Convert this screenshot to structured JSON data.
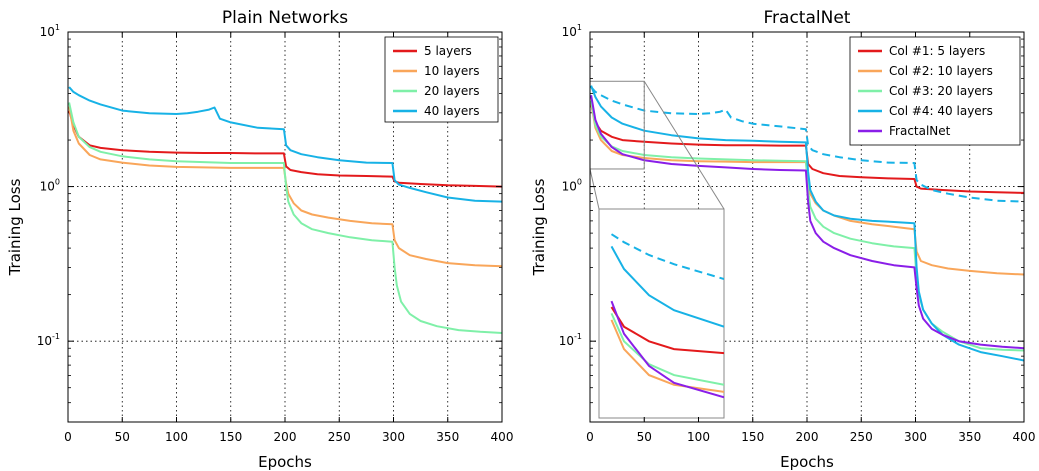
{
  "chart_data": [
    {
      "type": "line",
      "title": "Plain Networks",
      "xlabel": "Epochs",
      "ylabel": "Training Loss",
      "xlim": [
        0,
        400
      ],
      "ylim": [
        0.03,
        10
      ],
      "yscale": "log",
      "grid": true,
      "legend_position": "top-right",
      "x_ticks": [
        "0",
        "50",
        "100",
        "150",
        "200",
        "250",
        "300",
        "350",
        "400"
      ],
      "y_ticks": [
        {
          "base": "10",
          "exp": "-1"
        },
        {
          "base": "10",
          "exp": "0"
        },
        {
          "base": "10",
          "exp": "1"
        }
      ],
      "series": [
        {
          "name": "5 layers",
          "color": "#e31a1c",
          "x": [
            1,
            5,
            10,
            20,
            30,
            50,
            75,
            100,
            125,
            150,
            175,
            199,
            201,
            205,
            215,
            230,
            250,
            275,
            299,
            301,
            305,
            325,
            350,
            375,
            400
          ],
          "y": [
            3.1,
            2.5,
            2.1,
            1.85,
            1.78,
            1.72,
            1.68,
            1.66,
            1.65,
            1.65,
            1.64,
            1.64,
            1.35,
            1.28,
            1.24,
            1.2,
            1.18,
            1.17,
            1.16,
            1.08,
            1.06,
            1.04,
            1.02,
            1.01,
            1.0
          ]
        },
        {
          "name": "10 layers",
          "color": "#f9a65a",
          "x": [
            1,
            5,
            10,
            20,
            30,
            50,
            75,
            100,
            125,
            150,
            175,
            199,
            201,
            203,
            208,
            215,
            225,
            240,
            260,
            280,
            299,
            301,
            305,
            315,
            330,
            350,
            375,
            400
          ],
          "y": [
            3.3,
            2.3,
            1.9,
            1.6,
            1.5,
            1.43,
            1.37,
            1.34,
            1.33,
            1.32,
            1.32,
            1.32,
            1.05,
            0.9,
            0.78,
            0.7,
            0.66,
            0.63,
            0.6,
            0.58,
            0.57,
            0.45,
            0.4,
            0.36,
            0.34,
            0.32,
            0.31,
            0.305
          ]
        },
        {
          "name": "20 layers",
          "color": "#7ff0a8",
          "x": [
            1,
            5,
            10,
            20,
            30,
            50,
            75,
            100,
            125,
            150,
            175,
            199,
            201,
            203,
            208,
            215,
            225,
            240,
            260,
            280,
            299,
            301,
            303,
            307,
            315,
            325,
            340,
            360,
            380,
            400
          ],
          "y": [
            3.5,
            2.6,
            2.1,
            1.8,
            1.68,
            1.57,
            1.5,
            1.46,
            1.44,
            1.42,
            1.42,
            1.42,
            1.0,
            0.8,
            0.66,
            0.58,
            0.53,
            0.5,
            0.47,
            0.45,
            0.44,
            0.3,
            0.23,
            0.18,
            0.15,
            0.135,
            0.125,
            0.118,
            0.115,
            0.113
          ]
        },
        {
          "name": "40 layers",
          "color": "#17b2e6",
          "x": [
            1,
            5,
            10,
            20,
            30,
            50,
            75,
            100,
            110,
            120,
            130,
            135,
            140,
            150,
            175,
            199,
            201,
            205,
            215,
            230,
            250,
            275,
            299,
            301,
            305,
            315,
            330,
            350,
            375,
            400
          ],
          "y": [
            4.4,
            4.1,
            3.9,
            3.6,
            3.4,
            3.1,
            2.98,
            2.95,
            2.98,
            3.05,
            3.15,
            3.25,
            2.75,
            2.6,
            2.4,
            2.35,
            1.85,
            1.72,
            1.62,
            1.55,
            1.48,
            1.43,
            1.42,
            1.1,
            1.03,
            0.98,
            0.92,
            0.85,
            0.81,
            0.8
          ]
        }
      ]
    },
    {
      "type": "line",
      "title": "FractalNet",
      "xlabel": "Epochs",
      "ylabel": "Training Loss",
      "xlim": [
        0,
        400
      ],
      "ylim": [
        0.03,
        10
      ],
      "yscale": "log",
      "grid": true,
      "legend_position": "top-right",
      "inset": "magnified view of epochs 0-50",
      "x_ticks": [
        "0",
        "50",
        "100",
        "150",
        "200",
        "250",
        "300",
        "350",
        "400"
      ],
      "y_ticks": [
        {
          "base": "10",
          "exp": "-1"
        },
        {
          "base": "10",
          "exp": "0"
        },
        {
          "base": "10",
          "exp": "1"
        }
      ],
      "series": [
        {
          "name": "Col #1: 5 layers",
          "color": "#e31a1c",
          "x": [
            1,
            5,
            10,
            20,
            30,
            50,
            75,
            100,
            125,
            150,
            175,
            199,
            201,
            205,
            215,
            230,
            250,
            275,
            299,
            301,
            305,
            325,
            350,
            375,
            400
          ],
          "y": [
            3.4,
            2.6,
            2.3,
            2.1,
            2.0,
            1.95,
            1.9,
            1.87,
            1.85,
            1.85,
            1.84,
            1.84,
            1.4,
            1.3,
            1.22,
            1.17,
            1.15,
            1.13,
            1.12,
            1.0,
            0.97,
            0.95,
            0.93,
            0.92,
            0.91
          ]
        },
        {
          "name": "Col #2: 10 layers",
          "color": "#f9a65a",
          "x": [
            1,
            5,
            10,
            20,
            30,
            50,
            75,
            100,
            125,
            150,
            175,
            199,
            201,
            203,
            208,
            215,
            225,
            240,
            260,
            280,
            299,
            301,
            305,
            315,
            330,
            350,
            375,
            400
          ],
          "y": [
            3.5,
            2.4,
            2.0,
            1.7,
            1.6,
            1.53,
            1.48,
            1.46,
            1.45,
            1.44,
            1.44,
            1.44,
            1.1,
            0.9,
            0.78,
            0.7,
            0.65,
            0.6,
            0.57,
            0.55,
            0.53,
            0.38,
            0.33,
            0.31,
            0.295,
            0.285,
            0.275,
            0.27
          ]
        },
        {
          "name": "Col #3: 20 layers",
          "color": "#7ff0a8",
          "x": [
            1,
            5,
            10,
            20,
            30,
            50,
            75,
            100,
            125,
            150,
            175,
            199,
            201,
            203,
            208,
            215,
            225,
            240,
            260,
            280,
            299,
            301,
            303,
            307,
            315,
            325,
            340,
            360,
            380,
            400
          ],
          "y": [
            3.6,
            2.5,
            2.1,
            1.82,
            1.7,
            1.6,
            1.55,
            1.52,
            1.5,
            1.48,
            1.47,
            1.46,
            0.95,
            0.74,
            0.62,
            0.55,
            0.5,
            0.46,
            0.43,
            0.41,
            0.4,
            0.26,
            0.2,
            0.16,
            0.13,
            0.115,
            0.1,
            0.09,
            0.088,
            0.087
          ]
        },
        {
          "name": "Col #4: 40 layers",
          "color": "#17b2e6",
          "x": [
            1,
            5,
            10,
            20,
            30,
            50,
            75,
            100,
            125,
            150,
            175,
            199,
            201,
            203,
            208,
            215,
            225,
            240,
            260,
            280,
            299,
            301,
            303,
            307,
            315,
            325,
            340,
            360,
            380,
            400
          ],
          "y": [
            4.5,
            3.8,
            3.3,
            2.8,
            2.55,
            2.3,
            2.15,
            2.05,
            2.0,
            1.98,
            1.95,
            1.93,
            1.25,
            0.95,
            0.8,
            0.7,
            0.65,
            0.62,
            0.6,
            0.59,
            0.58,
            0.3,
            0.21,
            0.16,
            0.13,
            0.11,
            0.095,
            0.085,
            0.08,
            0.075
          ]
        },
        {
          "name": "",
          "color": "#17b2e6",
          "dashed": true,
          "x": [
            1,
            5,
            10,
            20,
            30,
            50,
            75,
            100,
            110,
            120,
            125,
            130,
            140,
            150,
            175,
            199,
            201,
            205,
            215,
            230,
            250,
            275,
            299,
            301,
            305,
            315,
            330,
            350,
            375,
            400
          ],
          "y": [
            4.4,
            4.1,
            3.9,
            3.6,
            3.4,
            3.1,
            2.98,
            2.95,
            2.98,
            3.05,
            3.15,
            2.8,
            2.65,
            2.55,
            2.45,
            2.35,
            1.85,
            1.72,
            1.62,
            1.55,
            1.48,
            1.43,
            1.42,
            1.1,
            1.03,
            0.95,
            0.9,
            0.85,
            0.81,
            0.8
          ]
        },
        {
          "name": "FractalNet",
          "color": "#8a1ee8",
          "x": [
            1,
            5,
            10,
            20,
            30,
            50,
            75,
            100,
            125,
            150,
            175,
            199,
            201,
            203,
            208,
            215,
            225,
            240,
            260,
            280,
            299,
            301,
            303,
            307,
            315,
            325,
            340,
            360,
            380,
            400
          ],
          "y": [
            3.9,
            2.7,
            2.2,
            1.8,
            1.62,
            1.48,
            1.4,
            1.36,
            1.33,
            1.3,
            1.28,
            1.27,
            0.8,
            0.6,
            0.5,
            0.44,
            0.4,
            0.36,
            0.33,
            0.31,
            0.3,
            0.22,
            0.17,
            0.14,
            0.12,
            0.11,
            0.1,
            0.095,
            0.092,
            0.09
          ]
        }
      ]
    }
  ]
}
